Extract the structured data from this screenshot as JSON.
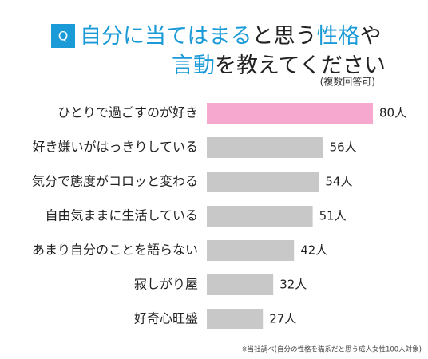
{
  "chart_data": {
    "type": "barh",
    "badge": "Q",
    "badge_color": "#1a9ad6",
    "title_lines": [
      [
        {
          "text": "自分に当てはまる",
          "color": "#1a9ad6"
        },
        {
          "text": "と思う",
          "color": "#222222"
        },
        {
          "text": "性格",
          "color": "#1a9ad6"
        },
        {
          "text": "や",
          "color": "#222222"
        }
      ],
      [
        {
          "text": "言動",
          "color": "#1a9ad6"
        },
        {
          "text": "を教えてください",
          "color": "#222222"
        }
      ]
    ],
    "subtitle": "(複数回答可)",
    "categories": [
      "ひとりで過ごすのが好き",
      "好き嫌いがはっきりしている",
      "気分で態度がコロッと変わる",
      "自由気ままに生活している",
      "あまり自分のことを語らない",
      "寂しがり屋",
      "好奇心旺盛"
    ],
    "values": [
      80,
      56,
      54,
      51,
      42,
      32,
      27
    ],
    "value_labels": [
      "80人",
      "56人",
      "54人",
      "51人",
      "42人",
      "32人",
      "27人"
    ],
    "colors": [
      "#f7a8cf",
      "#c8c8c8",
      "#c8c8c8",
      "#c8c8c8",
      "#c8c8c8",
      "#c8c8c8",
      "#c8c8c8"
    ],
    "footnote": "※当社調べ(自分の性格を猫系だと思う成人女性100人対象)"
  }
}
